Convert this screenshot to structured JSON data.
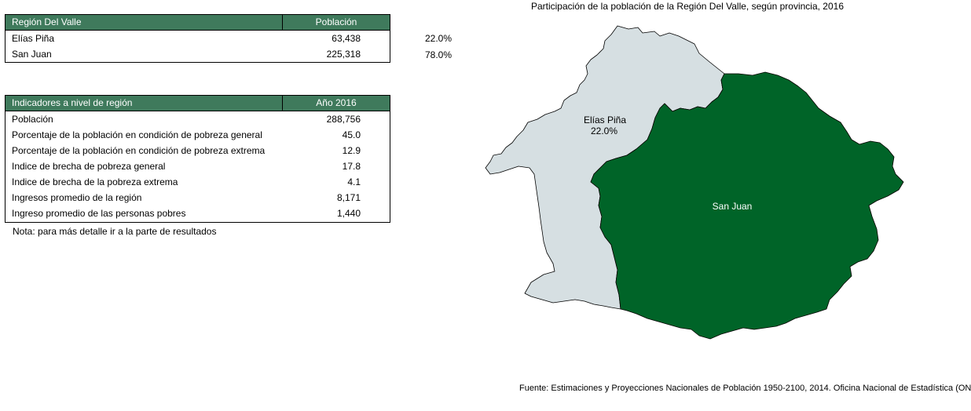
{
  "table1": {
    "header": [
      "Región Del Valle",
      "Población"
    ],
    "rows": [
      {
        "label": "Elías Piña",
        "value": "63,438",
        "pct": "22.0%"
      },
      {
        "label": "San Juan",
        "value": "225,318",
        "pct": "78.0%"
      }
    ]
  },
  "table2": {
    "header": [
      "Indicadores a nivel de región",
      "Año 2016"
    ],
    "rows": [
      {
        "label": "Población",
        "value": "288,756"
      },
      {
        "label": "Porcentaje de la población en condición de pobreza general",
        "value": "45.0"
      },
      {
        "label": "Porcentaje de la población en condición de pobreza extrema",
        "value": "12.9"
      },
      {
        "label": "Indice de brecha de pobreza general",
        "value": "17.8"
      },
      {
        "label": "Indice de  brecha de la pobreza extrema",
        "value": "4.1"
      },
      {
        "label": "Ingresos promedio de la región",
        "value": "8,171"
      },
      {
        "label": "Ingreso promedio de las personas pobres",
        "value": "1,440"
      }
    ]
  },
  "note": "Nota: para más detalle ir a la parte de resultados",
  "source": "Fuente: Estimaciones y Proyecciones Nacionales de Población 1950-2100, 2014. Oficina Nacional de Estadística (ONE)",
  "colors": {
    "header_green": "#3f7a5c",
    "elias_pina": "#d6dfe2",
    "san_juan": "#006428",
    "border": "#000000"
  },
  "chart_data": {
    "type": "map",
    "title": "Participación de la población de la Región Del Valle, según provincia, 2016",
    "regions": [
      {
        "name": "Elías Piña",
        "label": "Elías Piña",
        "value_label": "22.0%",
        "population": 63438,
        "share": 22.0,
        "color": "#d6dfe2"
      },
      {
        "name": "San Juan",
        "label": "San Juan",
        "value_label": "",
        "population": 225318,
        "share": 78.0,
        "color": "#006428"
      }
    ]
  }
}
